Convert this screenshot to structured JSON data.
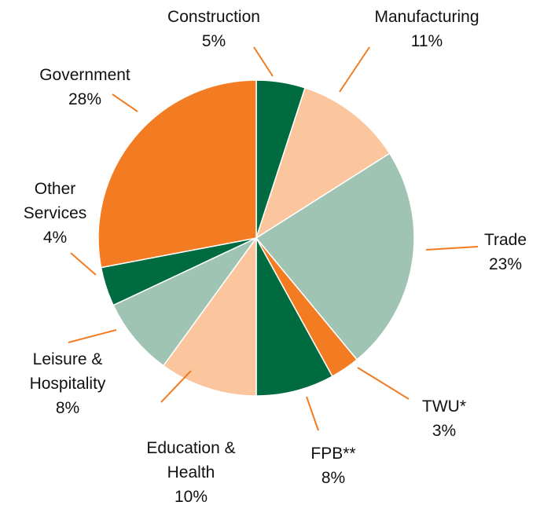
{
  "chart_data": {
    "type": "pie",
    "categories": [
      "Construction",
      "Manufacturing",
      "Trade",
      "TWU*",
      "FPB**",
      "Education & Health",
      "Leisure & Hospitality",
      "Other Services",
      "Government"
    ],
    "values": [
      5,
      11,
      23,
      3,
      8,
      10,
      8,
      4,
      28
    ],
    "value_labels": [
      "5%",
      "11%",
      "23%",
      "3%",
      "8%",
      "10%",
      "8%",
      "4%",
      "28%"
    ],
    "colors": [
      "#006b40",
      "#fbc59e",
      "#9fc4b3",
      "#f37b21",
      "#006b40",
      "#fbc59e",
      "#9fc4b3",
      "#006b40",
      "#f37b21"
    ],
    "leader_color": "#f37b21"
  }
}
